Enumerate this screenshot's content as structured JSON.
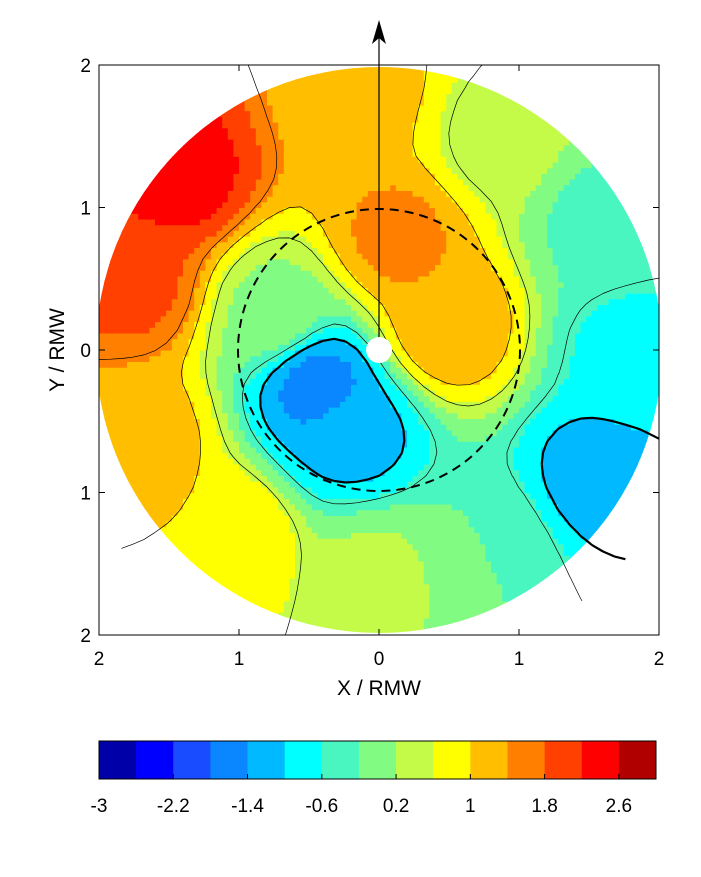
{
  "chart_data": [
    {
      "type": "heatmap",
      "title": "",
      "xlabel": "X / RMW",
      "ylabel": "Y / RMW",
      "xlim": [
        -2,
        2
      ],
      "ylim": [
        -2,
        2
      ],
      "x_tick_labels": [
        "2",
        "1",
        "0",
        "1",
        "2"
      ],
      "y_tick_labels": [
        "2",
        "1",
        "0",
        "1",
        "2"
      ],
      "grid": false,
      "field_domain": "disc of radius 2 RMW",
      "center_marker": "white dot",
      "rmw_circle": {
        "radius": 1,
        "style": "dashed"
      },
      "arrow": {
        "from": [
          0,
          0
        ],
        "to": [
          0,
          2.3
        ],
        "direction": "up"
      },
      "contour_lines": "thin and thick black contours",
      "field_samples": [
        {
          "r": 1.9,
          "theta_deg": 140,
          "value": 2.4
        },
        {
          "r": 1.8,
          "theta_deg": 165,
          "value": 1.9
        },
        {
          "r": 1.8,
          "theta_deg": 200,
          "value": 1.2
        },
        {
          "r": 1.7,
          "theta_deg": 230,
          "value": 1.0
        },
        {
          "r": 1.6,
          "theta_deg": 270,
          "value": 0.3
        },
        {
          "r": 1.6,
          "theta_deg": 300,
          "value": -0.2
        },
        {
          "r": 1.8,
          "theta_deg": 330,
          "value": -1.2
        },
        {
          "r": 1.8,
          "theta_deg": 0,
          "value": -0.7
        },
        {
          "r": 1.8,
          "theta_deg": 30,
          "value": -0.3
        },
        {
          "r": 1.7,
          "theta_deg": 60,
          "value": 0.4
        },
        {
          "r": 1.8,
          "theta_deg": 95,
          "value": 1.2
        },
        {
          "r": 0.8,
          "theta_deg": 80,
          "value": 1.5
        },
        {
          "r": 0.5,
          "theta_deg": 20,
          "value": 1.4
        },
        {
          "r": 0.5,
          "theta_deg": 210,
          "value": -1.6
        },
        {
          "r": 0.6,
          "theta_deg": 250,
          "value": -1.2
        },
        {
          "r": 0.8,
          "theta_deg": 160,
          "value": 0.1
        }
      ]
    },
    {
      "type": "colorbar",
      "range": [
        -3,
        3
      ],
      "tick_labels": [
        "-3",
        "-2.2",
        "-1.4",
        "-0.6",
        "0.2",
        "1",
        "1.8",
        "2.6"
      ],
      "colors": [
        "#0000a8",
        "#0000ff",
        "#1a4cff",
        "#0a86ff",
        "#00b9ff",
        "#00ffff",
        "#4af6c0",
        "#82fb82",
        "#c4fb48",
        "#ffff00",
        "#ffbf00",
        "#ff8000",
        "#ff4000",
        "#ff0000",
        "#b00000"
      ]
    }
  ]
}
